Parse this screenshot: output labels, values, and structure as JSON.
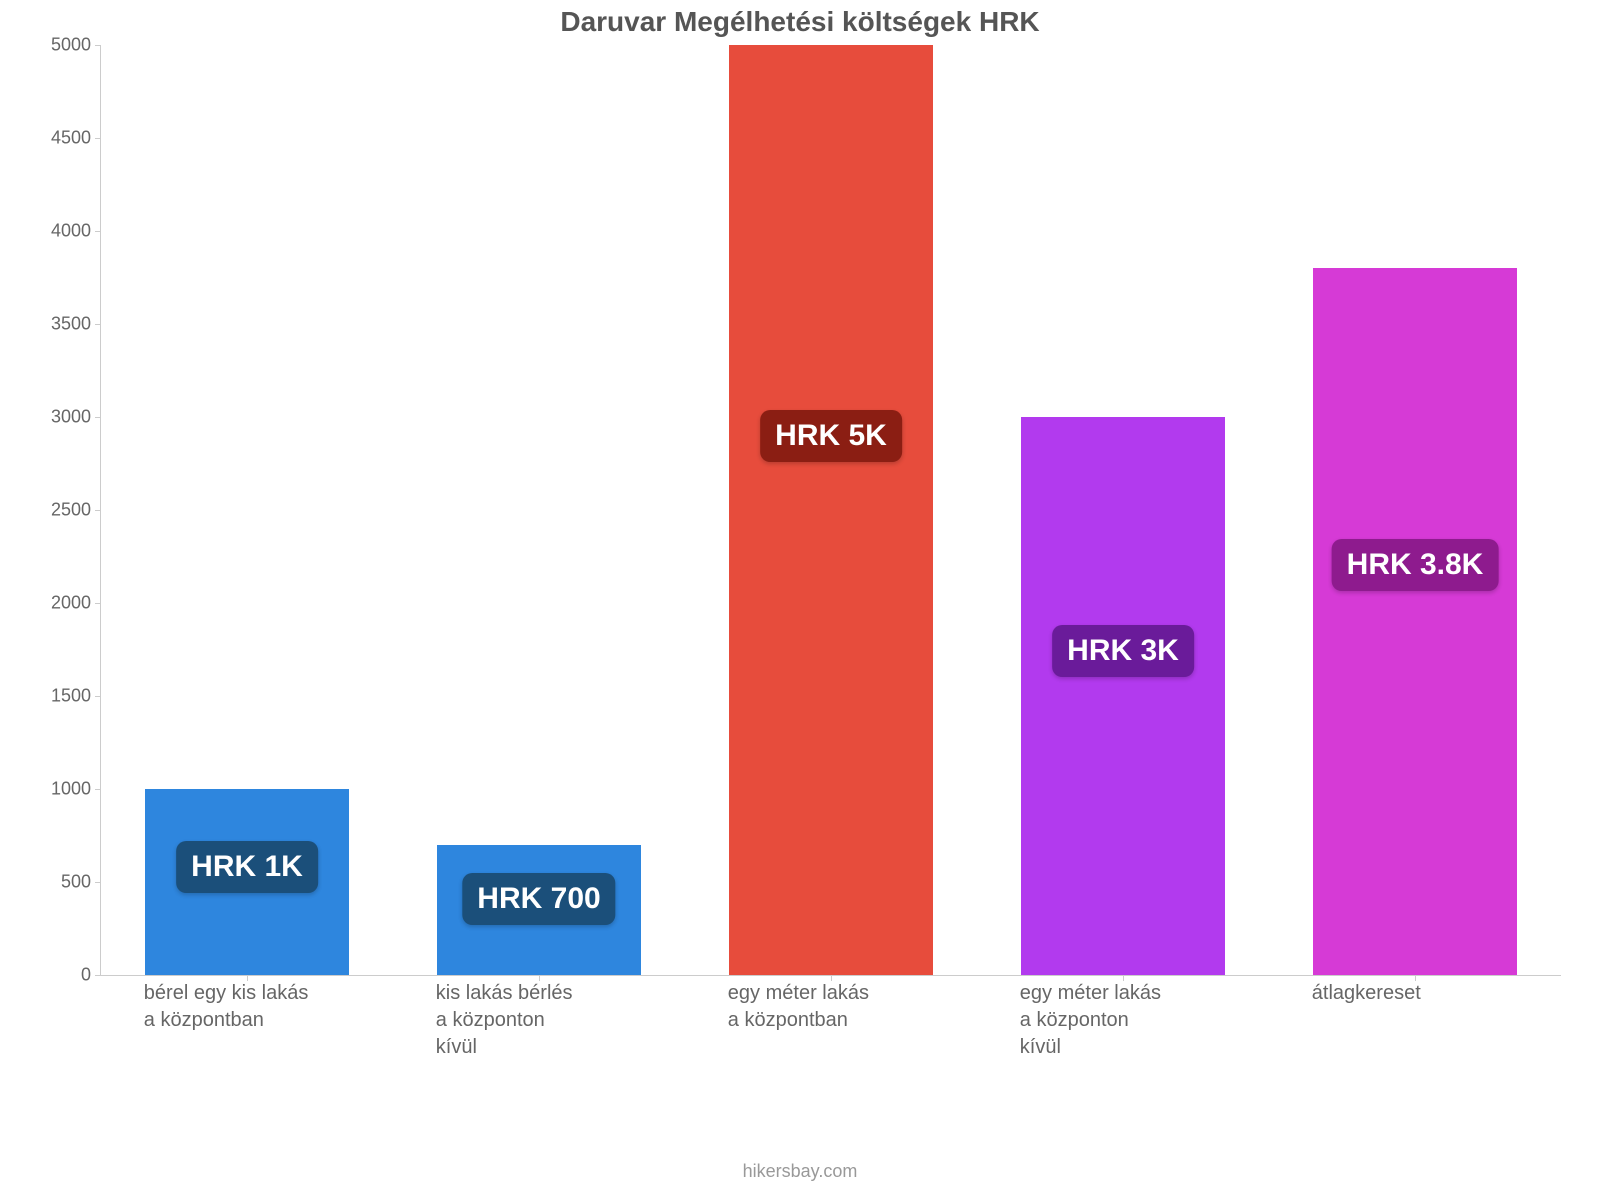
{
  "chart": {
    "type": "bar",
    "title": "Daruvar Megélhetési költségek HRK",
    "title_fontsize": 28,
    "title_color": "#555555",
    "background_color": "#ffffff",
    "axis_color": "#cccccc",
    "tick_label_color": "#666666",
    "xlabel_fontsize": 20,
    "ytick_fontsize": 18,
    "ylim": [
      0,
      5000
    ],
    "ytick_step": 500,
    "yticks": [
      0,
      500,
      1000,
      1500,
      2000,
      2500,
      3000,
      3500,
      4000,
      4500,
      5000
    ],
    "bar_width": 0.7,
    "attribution": "hikersbay.com",
    "attribution_color": "#999999",
    "categories": [
      "bérel egy kis lakás\na központban",
      "kis lakás bérlés\na központon\nkívül",
      "egy méter lakás\na központban",
      "egy méter lakás\na központon\nkívül",
      "átlagkereset"
    ],
    "values": [
      1000,
      700,
      5000,
      3000,
      3800
    ],
    "value_labels": [
      "HRK 1K",
      "HRK 700",
      "HRK 5K",
      "HRK 3K",
      "HRK 3.8K"
    ],
    "bar_colors": [
      "#2e86de",
      "#2e86de",
      "#e74c3c",
      "#b23aee",
      "#d63ad6"
    ],
    "badge_colors": [
      "#1b4f7a",
      "#1b4f7a",
      "#8b1e13",
      "#6a1b9a",
      "#8e1b8e"
    ],
    "badge_fontsize": 30,
    "badge_text_color": "#ffffff"
  }
}
